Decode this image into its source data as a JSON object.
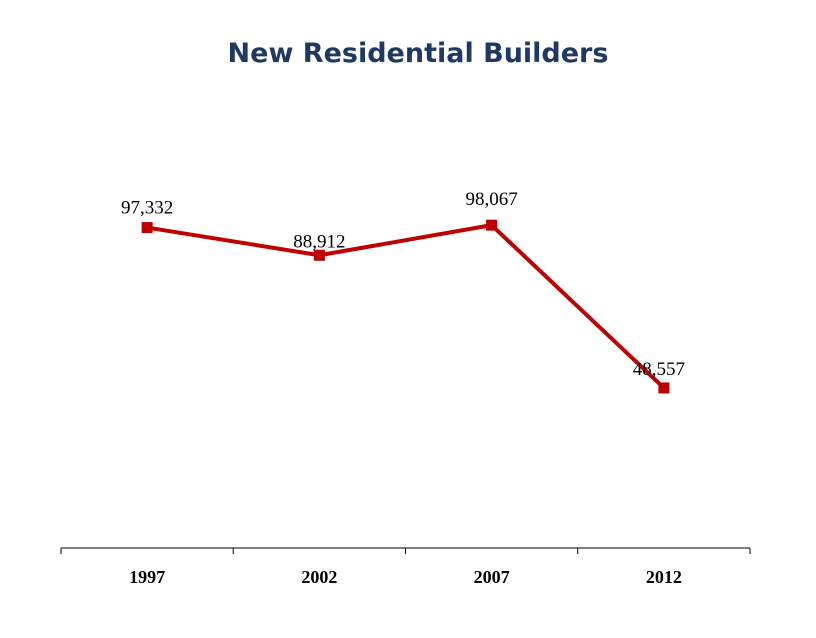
{
  "chart_data": {
    "type": "line",
    "title": "New Residential Builders",
    "categories": [
      "1997",
      "2002",
      "2007",
      "2012"
    ],
    "series": [
      {
        "values": [
          97332,
          88912,
          98067,
          48557
        ],
        "color": "#c00000"
      }
    ],
    "data_labels": [
      "97,332",
      "88,912",
      "98,067",
      "48,557"
    ],
    "xlabel": "",
    "ylabel": "",
    "ylim": [
      0,
      160000
    ],
    "grid": false,
    "marker": "square"
  }
}
